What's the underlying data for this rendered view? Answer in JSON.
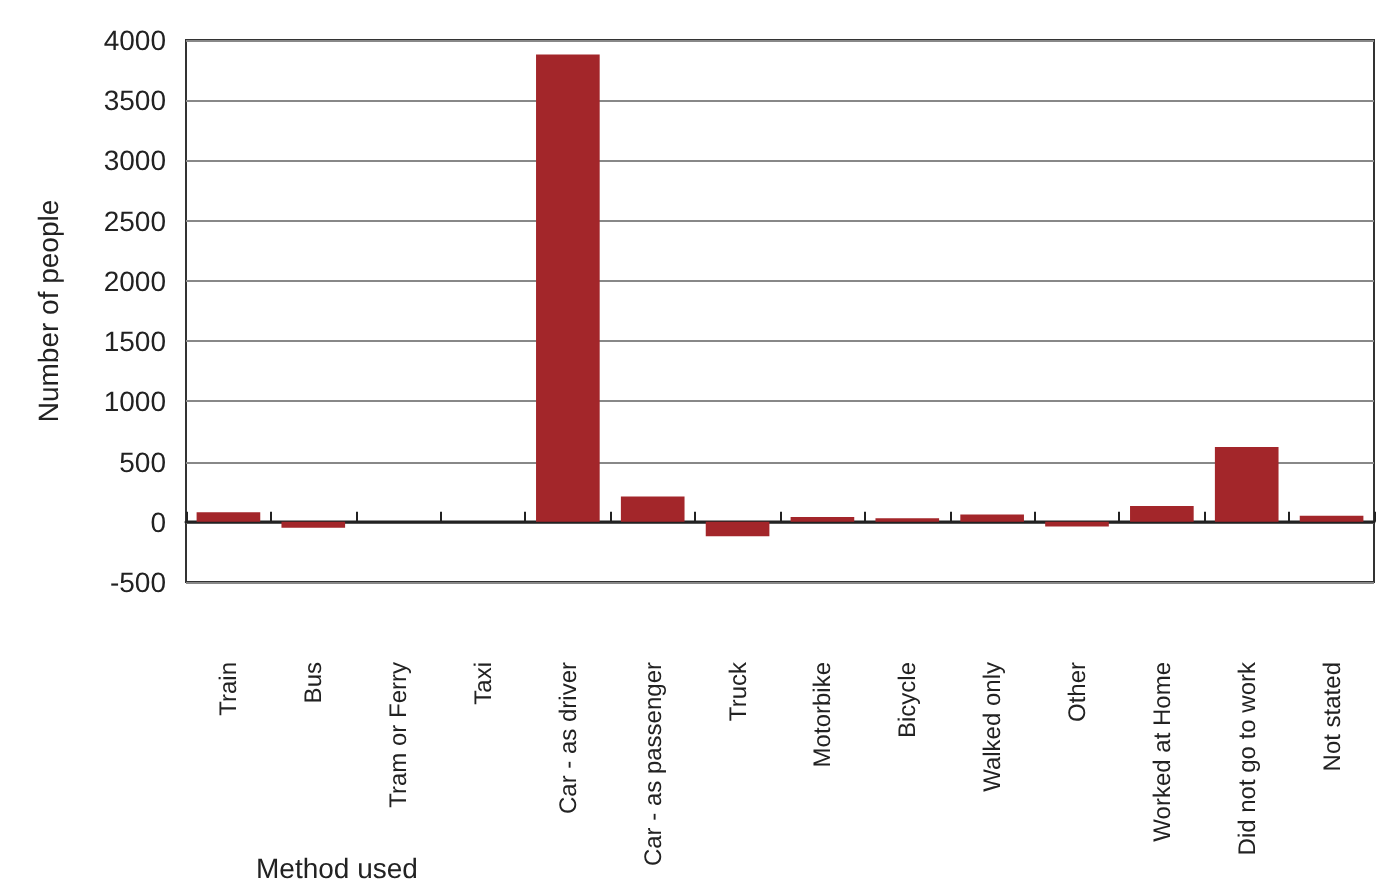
{
  "chart_data": {
    "type": "bar",
    "xlabel": "Method used",
    "ylabel": "Number of people",
    "categories": [
      "Train",
      "Bus",
      "Tram or Ferry",
      "Taxi",
      "Car - as driver",
      "Car - as passenger",
      "Truck",
      "Motorbike",
      "Bicycle",
      "Walked only",
      "Other",
      "Worked at Home",
      "Did not go to work",
      "Not stated"
    ],
    "values": [
      80,
      -50,
      0,
      0,
      3880,
      210,
      -120,
      40,
      30,
      60,
      -40,
      130,
      620,
      50
    ],
    "color": "#a3262a",
    "ylim": [
      -500,
      4000
    ],
    "yticks": [
      -500,
      0,
      500,
      1000,
      1500,
      2000,
      2500,
      3000,
      3500,
      4000
    ],
    "grid": "y"
  }
}
